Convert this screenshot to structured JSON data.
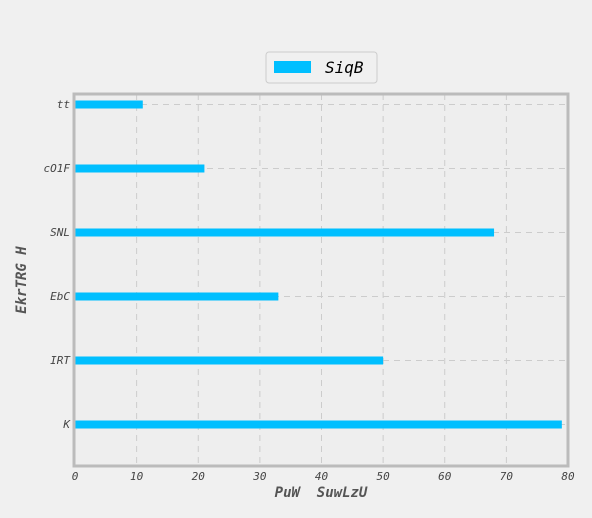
{
  "chart_data": {
    "type": "bar",
    "orientation": "horizontal",
    "title": "",
    "xlabel": "PuW  SuwLzU",
    "ylabel": "EkrTRG H",
    "categories": [
      "K",
      "IRT",
      "EbC",
      "SNL",
      "cO1F",
      "tt"
    ],
    "series": [
      {
        "name": "SiqB",
        "values": [
          79,
          50,
          33,
          68,
          21,
          11
        ],
        "color": "#00bfff"
      }
    ],
    "xlim": [
      0,
      80
    ],
    "x_ticks": [
      "0",
      "10",
      "20",
      "30",
      "40",
      "50",
      "60",
      "70",
      "80"
    ],
    "grid": true,
    "legend_position": "top-center",
    "colors": {
      "background": "#f0f0f0",
      "plot_background": "#eeeeee",
      "frame": "#bbbbbb",
      "grid": "#cccccc"
    }
  }
}
